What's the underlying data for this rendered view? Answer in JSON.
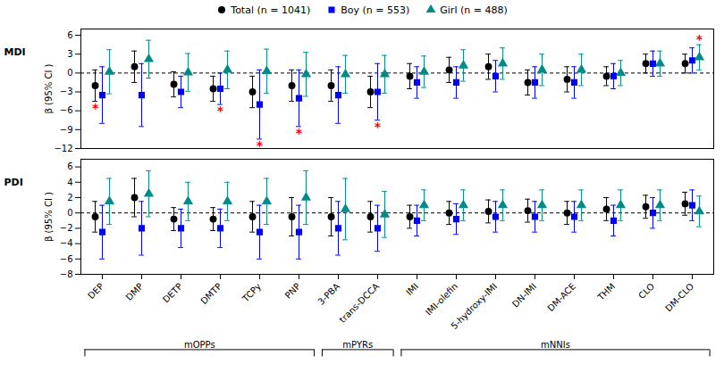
{
  "chart_data": [
    {
      "type": "errorbar",
      "title": "MDI",
      "ylabel": "β (95% CI )",
      "categories": [
        "DEP",
        "DMP",
        "DETP",
        "DMTP",
        "TCPy",
        "PNP",
        "3-PBA",
        "trans-DCCA",
        "IMI",
        "IMI-olefin",
        "5-hydroxy-IMI",
        "DN-IMI",
        "DM-ACE",
        "THM",
        "CLO",
        "DM-CLO"
      ],
      "ylim": [
        -12,
        7
      ],
      "yticks": [
        -12,
        -9,
        -6,
        -3,
        0,
        3,
        6
      ],
      "grid": false,
      "legend": "top",
      "tick_labels": "y",
      "series": [
        {
          "name": "Total (n = 1041)",
          "color": "#000000",
          "marker": "circle",
          "values": [
            -2.0,
            1.0,
            -1.8,
            -2.5,
            -3.0,
            -2.0,
            -2.0,
            -3.0,
            -0.5,
            0.5,
            1.0,
            -1.5,
            -1.0,
            -0.5,
            1.5,
            1.5
          ],
          "error_lo": [
            2.5,
            2.5,
            2.0,
            2.0,
            2.5,
            2.5,
            2.5,
            2.5,
            2.0,
            2.0,
            2.0,
            2.0,
            2.0,
            1.5,
            1.5,
            1.5
          ],
          "error_hi": [
            2.5,
            2.5,
            2.0,
            2.0,
            2.5,
            2.5,
            2.5,
            2.5,
            2.0,
            2.0,
            2.0,
            2.0,
            2.0,
            1.5,
            1.5,
            1.5
          ]
        },
        {
          "name": "Boy (n = 553)",
          "color": "#0000FF",
          "marker": "square",
          "values": [
            -3.5,
            -3.5,
            -3.0,
            -2.5,
            -5.0,
            -4.0,
            -3.5,
            -3.0,
            -1.5,
            -1.5,
            -0.5,
            -1.5,
            -1.5,
            -0.5,
            1.5,
            2.0
          ],
          "error_lo": [
            4.5,
            5.0,
            2.5,
            2.5,
            5.5,
            4.5,
            4.5,
            4.5,
            2.5,
            2.5,
            2.5,
            2.5,
            2.5,
            2.0,
            2.0,
            2.0
          ],
          "error_hi": [
            4.5,
            5.0,
            2.5,
            2.5,
            5.5,
            4.5,
            4.5,
            4.5,
            2.5,
            2.5,
            2.5,
            2.5,
            2.5,
            2.0,
            2.0,
            2.0
          ]
        },
        {
          "name": "Girl (n = 488)",
          "color": "#008B8B",
          "marker": "triangle",
          "values": [
            0.2,
            2.2,
            0.1,
            0.5,
            0.3,
            -0.2,
            -0.2,
            -0.2,
            0.2,
            1.2,
            1.5,
            0.5,
            0.5,
            0.0,
            1.5,
            2.5
          ],
          "error_lo": [
            3.5,
            3.0,
            3.0,
            3.0,
            3.5,
            3.5,
            3.0,
            3.0,
            2.5,
            2.5,
            2.5,
            2.5,
            2.5,
            2.0,
            2.0,
            2.0
          ],
          "error_hi": [
            3.5,
            3.0,
            3.0,
            3.0,
            3.5,
            3.5,
            3.0,
            3.0,
            2.5,
            2.5,
            2.5,
            2.5,
            2.5,
            2.0,
            2.0,
            2.0
          ]
        }
      ],
      "annotations": [
        {
          "text": "*",
          "category": "DEP",
          "series": "Total (n = 1041)",
          "color": "red",
          "position": "below"
        },
        {
          "text": "*",
          "category": "DMTP",
          "series": "Boy (n = 553)",
          "color": "red",
          "position": "below"
        },
        {
          "text": "*",
          "category": "TCPy",
          "series": "Boy (n = 553)",
          "color": "red",
          "position": "below"
        },
        {
          "text": "*",
          "category": "PNP",
          "series": "Boy (n = 553)",
          "color": "red",
          "position": "below"
        },
        {
          "text": "*",
          "category": "trans-DCCA",
          "series": "Boy (n = 553)",
          "color": "red",
          "position": "below"
        },
        {
          "text": "*",
          "category": "DM-CLO",
          "series": "Girl (n = 488)",
          "color": "red",
          "position": "above"
        }
      ]
    },
    {
      "type": "errorbar",
      "title": "PDI",
      "ylabel": "β (95% CI )",
      "categories": [
        "DEP",
        "DMP",
        "DETP",
        "DMTP",
        "TCPy",
        "PNP",
        "3-PBA",
        "trans-DCCA",
        "IMI",
        "IMI-olefin",
        "5-hydroxy-IMI",
        "DN-IMI",
        "DM-ACE",
        "THM",
        "CLO",
        "DM-CLO"
      ],
      "ylim": [
        -8,
        7
      ],
      "yticks": [
        -8,
        -6,
        -4,
        -2,
        0,
        2,
        4,
        6
      ],
      "grid": false,
      "series": [
        {
          "name": "Total (n = 1041)",
          "color": "#000000",
          "marker": "circle",
          "values": [
            -0.5,
            2.0,
            -0.8,
            -0.8,
            -0.5,
            -0.5,
            -0.5,
            -0.5,
            -0.5,
            0.0,
            0.2,
            0.3,
            0.0,
            0.5,
            0.8,
            1.2
          ],
          "error_lo": [
            2.0,
            2.5,
            1.5,
            1.5,
            2.0,
            2.5,
            2.5,
            2.0,
            1.5,
            1.5,
            1.5,
            1.5,
            1.5,
            1.5,
            1.5,
            1.5
          ],
          "error_hi": [
            2.0,
            2.5,
            1.5,
            1.5,
            2.0,
            2.5,
            2.5,
            2.0,
            1.5,
            1.5,
            1.5,
            1.5,
            1.5,
            1.5,
            1.5,
            1.5
          ]
        },
        {
          "name": "Boy (n = 553)",
          "color": "#0000FF",
          "marker": "square",
          "values": [
            -2.5,
            -2.0,
            -2.0,
            -2.0,
            -2.5,
            -2.5,
            -2.0,
            -2.0,
            -1.0,
            -0.8,
            -0.5,
            -0.5,
            -0.5,
            -1.0,
            0.0,
            1.0
          ],
          "error_lo": [
            3.5,
            3.5,
            2.5,
            2.5,
            3.5,
            3.5,
            3.5,
            3.0,
            2.0,
            2.0,
            2.0,
            2.0,
            2.0,
            2.0,
            2.0,
            2.0
          ],
          "error_hi": [
            3.5,
            3.5,
            2.5,
            2.5,
            3.5,
            3.5,
            3.5,
            3.0,
            2.0,
            2.0,
            2.0,
            2.0,
            2.0,
            2.0,
            2.0,
            2.0
          ]
        },
        {
          "name": "Girl (n = 488)",
          "color": "#008B8B",
          "marker": "triangle",
          "values": [
            1.5,
            2.5,
            1.5,
            1.5,
            1.5,
            2.0,
            0.5,
            -0.2,
            1.0,
            1.0,
            1.0,
            1.0,
            1.0,
            1.0,
            1.0,
            0.2
          ],
          "error_lo": [
            3.0,
            3.0,
            2.5,
            2.5,
            3.0,
            3.5,
            4.0,
            3.0,
            2.0,
            2.0,
            2.0,
            2.0,
            2.0,
            2.0,
            2.0,
            2.0
          ],
          "error_hi": [
            3.0,
            3.0,
            2.5,
            2.5,
            3.0,
            3.5,
            4.0,
            3.0,
            2.0,
            2.0,
            2.0,
            2.0,
            2.0,
            2.0,
            2.0,
            2.0
          ]
        }
      ],
      "groups": [
        {
          "label": "mOPPs",
          "from": "DEP",
          "to": "PNP"
        },
        {
          "label": "mPYRs",
          "from": "3-PBA",
          "to": "trans-DCCA"
        },
        {
          "label": "mNNIs",
          "from": "IMI",
          "to": "DM-CLO"
        }
      ]
    }
  ]
}
